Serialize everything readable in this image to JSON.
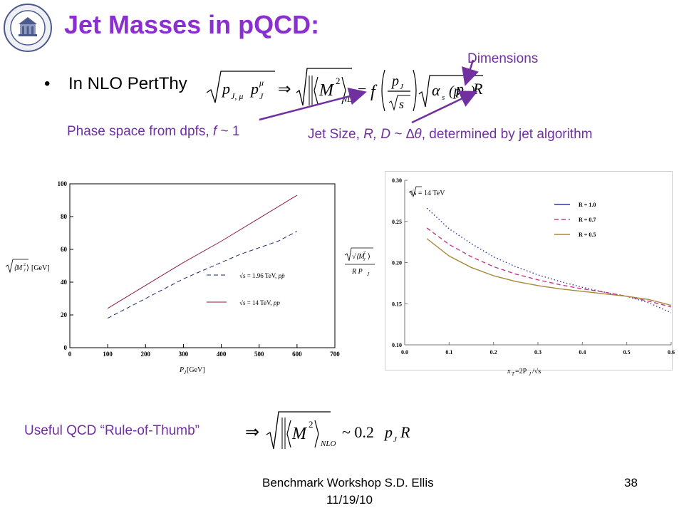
{
  "slide": {
    "title": "Jet Masses in pQCD:",
    "bullet_symbol": "•",
    "bullet_text": "In NLO PertThy",
    "annotations": {
      "dimensions": "Dimensions",
      "phase_space_prefix": "Phase space from dpfs, ",
      "phase_space_f": "f",
      "phase_space_suffix": " ~ 1",
      "jet_size_prefix": "Jet Size, ",
      "jet_size_vars": "R, D",
      "jet_size_mid": " ~ ",
      "jet_size_delta": "∆θ",
      "jet_size_suffix": ", determined by jet algorithm",
      "rule_of_thumb": "Useful QCD “Rule-of-Thumb”"
    },
    "footer": {
      "line1": "Benchmark Workshop   S.D. Ellis",
      "line2": "11/19/10",
      "page_number": "38"
    },
    "colors": {
      "title": "#8b2fd1",
      "annotation": "#7030a0",
      "arrow": "#7030a0"
    }
  },
  "equations": {
    "main": {
      "lhs": "p",
      "lhs_sub": "J, μ",
      "lhs2": "p",
      "lhs2_sub": "J",
      "lhs2_sup": "μ",
      "arrow": "⇒",
      "M": "M",
      "M_sup": "2",
      "nlo": "NLO",
      "equals": "=",
      "f": "f",
      "frac_num": "p",
      "frac_num_sub": "J",
      "frac_den": "s",
      "alpha": "α",
      "alpha_sub": "s",
      "alpha_arg": "(p",
      "alpha_arg_sub": "J",
      "alpha_arg_close": ")",
      "pj": "p",
      "pj_sub": "J",
      "R": "R"
    },
    "rule": {
      "arrow": "⇒",
      "M": "M",
      "M_sup": "2",
      "nlo": "NLO",
      "approx": "~ 0.2",
      "pj": "p",
      "pj_sub": "J",
      "R": "R"
    }
  },
  "chart_data": [
    {
      "type": "line",
      "xlabel_main": "P",
      "xlabel_sub": "J",
      "xlabel_unit": "[GeV]",
      "ylabel_unit": "[GeV]",
      "xlim": [
        0,
        700
      ],
      "ylim": [
        0,
        100
      ],
      "xticks": [
        0,
        100,
        200,
        300,
        400,
        500,
        600,
        700
      ],
      "yticks": [
        0,
        20,
        40,
        60,
        80,
        100
      ],
      "series": [
        {
          "name": "√s = 1.96 TeV, pp̄",
          "style": "dashed",
          "color": "#1a2a6c",
          "x": [
            100,
            150,
            200,
            250,
            300,
            350,
            400,
            450,
            500,
            550,
            600
          ],
          "y": [
            18,
            24,
            30,
            36,
            42,
            47,
            52,
            57,
            61,
            65,
            71
          ]
        },
        {
          "name": "√s = 14 TeV, pp",
          "style": "solid",
          "color": "#8b1a4a",
          "x": [
            100,
            200,
            300,
            400,
            500,
            600
          ],
          "y": [
            24,
            38,
            52,
            65,
            79,
            93
          ]
        }
      ],
      "legend": [
        {
          "label": "√s = 1.96 TeV, ",
          "label_tail": "pp̄",
          "style": "dashed"
        },
        {
          "label": "√s = 14 TeV, ",
          "label_tail": "pp",
          "style": "solid"
        }
      ],
      "legend_position": "lower-right"
    },
    {
      "type": "line",
      "annotation": "√s = 14 TeV",
      "xlabel": "x",
      "xlabel_sub": "T",
      "xlabel_rest": "=2P",
      "xlabel_rest_sub": "J",
      "xlabel_tail": "/√s",
      "ylabel_num": "√⟨M",
      "ylabel_num_sub": "J",
      "ylabel_num_sup": "2",
      "ylabel_num_close": "⟩",
      "ylabel_den": "R P",
      "ylabel_den_sub": "J",
      "xlim": [
        0.0,
        0.6
      ],
      "ylim": [
        0.1,
        0.3
      ],
      "xticks": [
        "0.0",
        "0.1",
        "0.2",
        "0.3",
        "0.4",
        "0.5",
        "0.6"
      ],
      "yticks": [
        "0.10",
        "0.15",
        "0.20",
        "0.25",
        "0.30"
      ],
      "series": [
        {
          "name": "R = 1.0",
          "style": "dotted",
          "color": "#2b3aa0",
          "x": [
            0.05,
            0.1,
            0.15,
            0.2,
            0.25,
            0.3,
            0.35,
            0.4,
            0.45,
            0.5,
            0.55,
            0.6
          ],
          "y": [
            0.266,
            0.241,
            0.223,
            0.207,
            0.195,
            0.185,
            0.177,
            0.17,
            0.164,
            0.159,
            0.151,
            0.139
          ]
        },
        {
          "name": "R = 0.7",
          "style": "dashed",
          "color": "#c03a8a",
          "x": [
            0.05,
            0.1,
            0.15,
            0.2,
            0.25,
            0.3,
            0.35,
            0.4,
            0.45,
            0.5,
            0.55,
            0.6
          ],
          "y": [
            0.242,
            0.222,
            0.207,
            0.195,
            0.186,
            0.179,
            0.173,
            0.168,
            0.164,
            0.159,
            0.153,
            0.146
          ]
        },
        {
          "name": "R = 0.5",
          "style": "solid",
          "color": "#a8893a",
          "x": [
            0.05,
            0.1,
            0.15,
            0.2,
            0.25,
            0.3,
            0.35,
            0.4,
            0.45,
            0.5,
            0.55,
            0.6
          ],
          "y": [
            0.229,
            0.208,
            0.194,
            0.184,
            0.177,
            0.172,
            0.168,
            0.165,
            0.162,
            0.159,
            0.155,
            0.148
          ]
        }
      ],
      "legend_position": "top-right"
    }
  ]
}
